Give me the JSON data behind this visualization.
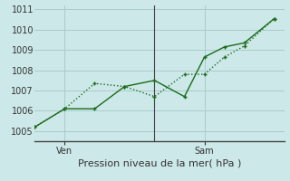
{
  "title": "Pression niveau de la mer( hPa )",
  "ylim": [
    1004.5,
    1011.2
  ],
  "yticks": [
    1005,
    1006,
    1007,
    1008,
    1009,
    1010,
    1011
  ],
  "background_color": "#cce8e8",
  "grid_color": "#aacccc",
  "line_color": "#1a6b1a",
  "xtick_labels": [
    "Ven",
    "Sam"
  ],
  "xtick_positions": [
    1.5,
    8.5
  ],
  "vline_x": 6.0,
  "line1_x": [
    0.0,
    1.5,
    3.0,
    4.5,
    6.0,
    7.5,
    8.5,
    9.5,
    10.5,
    12.0
  ],
  "line1_y": [
    1005.2,
    1006.1,
    1007.35,
    1007.2,
    1006.7,
    1007.8,
    1007.8,
    1008.65,
    1009.2,
    1010.55
  ],
  "line2_x": [
    0.0,
    1.5,
    3.0,
    4.5,
    6.0,
    7.5,
    8.5,
    9.5,
    10.5,
    12.0
  ],
  "line2_y": [
    1005.2,
    1006.1,
    1006.1,
    1007.2,
    1007.5,
    1006.7,
    1008.65,
    1009.15,
    1009.35,
    1010.55
  ],
  "font_size_label": 8,
  "font_size_tick": 7,
  "line_width": 1.0,
  "xlim": [
    0,
    12.5
  ]
}
